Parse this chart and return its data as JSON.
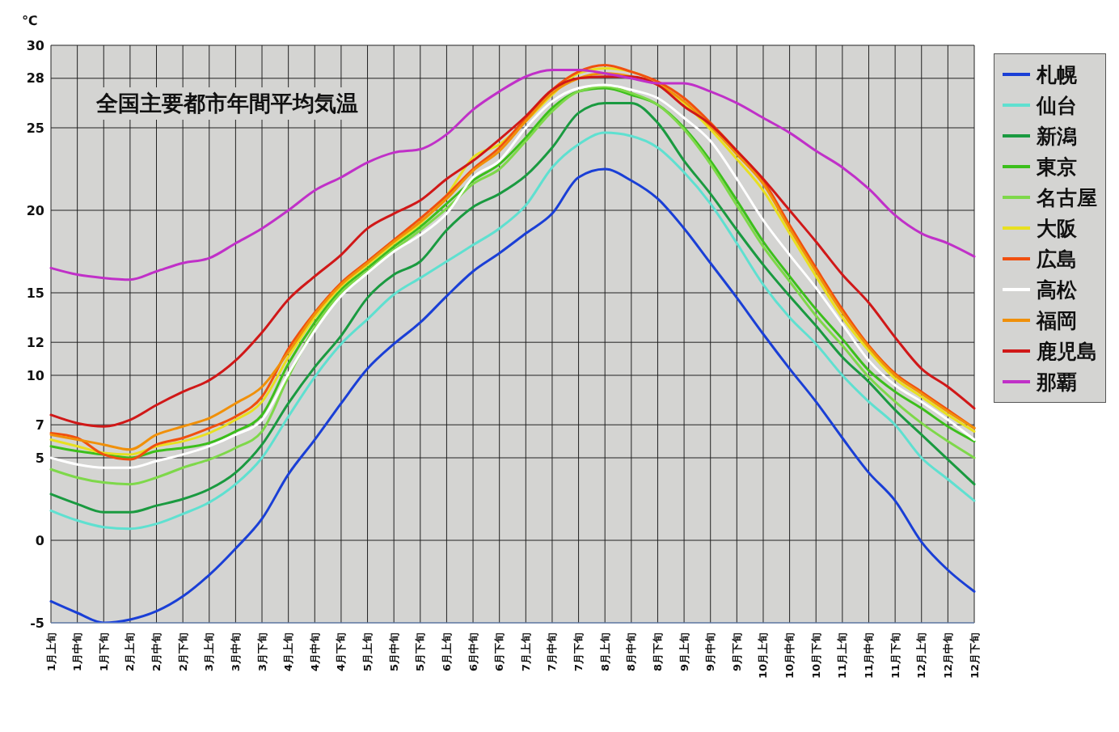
{
  "chart_data": {
    "type": "line",
    "title": "全国主要都市年間平均気温",
    "ylabel": "℃",
    "categories": [
      "1月上旬",
      "1月中旬",
      "1月下旬",
      "2月上旬",
      "2月中旬",
      "2月下旬",
      "3月上旬",
      "3月中旬",
      "3月下旬",
      "4月上旬",
      "4月中旬",
      "4月下旬",
      "5月上旬",
      "5月中旬",
      "5月下旬",
      "6月上旬",
      "6月中旬",
      "6月下旬",
      "7月上旬",
      "7月中旬",
      "7月下旬",
      "8月上旬",
      "8月中旬",
      "8月下旬",
      "9月上旬",
      "9月中旬",
      "9月下旬",
      "10月上旬",
      "10月中旬",
      "10月下旬",
      "11月上旬",
      "11月中旬",
      "11月下旬",
      "12月上旬",
      "12月中旬",
      "12月下旬"
    ],
    "series": [
      {
        "name": "札幌",
        "color": "#1a3fd6",
        "values": [
          -3.7,
          -4.4,
          -5.0,
          -4.8,
          -4.3,
          -3.4,
          -2.1,
          -0.5,
          1.3,
          4.0,
          6.1,
          8.3,
          10.4,
          11.9,
          13.2,
          14.8,
          16.3,
          17.4,
          18.6,
          19.8,
          22.0,
          22.5,
          21.8,
          20.7,
          18.9,
          16.8,
          14.7,
          12.5,
          10.4,
          8.4,
          6.2,
          4.1,
          2.4,
          -0.1,
          -1.8,
          -3.1
        ]
      },
      {
        "name": "仙台",
        "color": "#5fe0d0",
        "values": [
          1.8,
          1.2,
          0.8,
          0.7,
          1.0,
          1.6,
          2.3,
          3.4,
          5.0,
          7.5,
          9.9,
          11.9,
          13.4,
          14.9,
          15.9,
          16.9,
          17.9,
          18.9,
          20.3,
          22.6,
          24.0,
          24.7,
          24.5,
          23.8,
          22.3,
          20.4,
          18.0,
          15.5,
          13.5,
          11.9,
          10.0,
          8.4,
          7.0,
          5.0,
          3.7,
          2.4
        ]
      },
      {
        "name": "新潟",
        "color": "#1a9a40",
        "values": [
          2.8,
          2.2,
          1.7,
          1.7,
          2.1,
          2.5,
          3.1,
          4.1,
          5.8,
          8.3,
          10.5,
          12.4,
          14.7,
          16.1,
          16.9,
          18.8,
          20.2,
          21.0,
          22.1,
          23.8,
          25.9,
          26.5,
          26.5,
          25.3,
          23.0,
          21.0,
          18.8,
          16.7,
          14.8,
          13.0,
          11.1,
          9.6,
          7.9,
          6.4,
          4.9,
          3.4
        ]
      },
      {
        "name": "東京",
        "color": "#3cbf1c",
        "values": [
          5.7,
          5.4,
          5.2,
          5.0,
          5.4,
          5.6,
          5.9,
          6.6,
          7.6,
          10.7,
          13.2,
          15.2,
          16.5,
          17.8,
          19.0,
          20.4,
          21.8,
          22.8,
          24.4,
          26.2,
          27.2,
          27.4,
          27.0,
          26.4,
          25.0,
          23.0,
          20.6,
          18.1,
          16.0,
          14.0,
          12.2,
          10.3,
          9.0,
          8.0,
          6.9,
          6.0
        ]
      },
      {
        "name": "名古屋",
        "color": "#7ed84a",
        "values": [
          4.3,
          3.8,
          3.5,
          3.4,
          3.8,
          4.4,
          4.9,
          5.6,
          6.6,
          9.9,
          12.9,
          15.0,
          16.3,
          17.6,
          18.8,
          20.1,
          21.6,
          22.5,
          24.2,
          26.0,
          27.2,
          27.5,
          27.1,
          26.4,
          24.9,
          22.8,
          20.3,
          17.8,
          15.7,
          13.6,
          11.8,
          9.9,
          8.4,
          7.1,
          6.0,
          5.0
        ]
      },
      {
        "name": "大阪",
        "color": "#e8e020",
        "values": [
          6.1,
          5.7,
          5.3,
          5.2,
          5.7,
          6.0,
          6.5,
          7.3,
          8.4,
          11.1,
          13.5,
          15.4,
          16.7,
          18.0,
          19.2,
          20.9,
          23.2,
          24.0,
          25.4,
          27.0,
          28.3,
          28.6,
          28.4,
          27.7,
          26.5,
          24.9,
          23.1,
          21.2,
          18.6,
          16.0,
          13.5,
          11.5,
          9.8,
          8.7,
          7.6,
          6.6
        ]
      },
      {
        "name": "広島",
        "color": "#f05010",
        "values": [
          6.5,
          6.2,
          5.2,
          4.9,
          5.8,
          6.2,
          6.8,
          7.5,
          8.7,
          11.6,
          13.8,
          15.6,
          16.9,
          18.2,
          19.5,
          20.9,
          22.5,
          23.8,
          25.6,
          27.3,
          28.4,
          28.8,
          28.4,
          27.8,
          26.8,
          25.3,
          23.6,
          21.8,
          19.1,
          16.5,
          14.0,
          11.8,
          10.1,
          9.0,
          7.9,
          6.8
        ]
      },
      {
        "name": "高松",
        "color": "#ffffff",
        "values": [
          5.0,
          4.6,
          4.4,
          4.4,
          4.8,
          5.2,
          5.7,
          6.4,
          7.3,
          10.1,
          12.7,
          14.8,
          16.2,
          17.5,
          18.5,
          19.8,
          22.0,
          23.0,
          25.0,
          26.6,
          27.4,
          27.6,
          27.3,
          26.8,
          25.6,
          24.2,
          21.9,
          19.4,
          17.3,
          15.3,
          13.1,
          10.9,
          9.4,
          8.4,
          7.3,
          6.1
        ]
      },
      {
        "name": "福岡",
        "color": "#f0900a",
        "values": [
          6.4,
          6.1,
          5.8,
          5.5,
          6.4,
          6.9,
          7.4,
          8.3,
          9.3,
          11.4,
          13.7,
          15.5,
          16.8,
          18.1,
          19.3,
          20.7,
          22.4,
          23.6,
          25.4,
          27.1,
          28.0,
          28.3,
          28.1,
          27.6,
          26.6,
          25.1,
          23.4,
          21.6,
          18.9,
          16.3,
          13.8,
          11.7,
          10.0,
          8.9,
          7.8,
          6.8
        ]
      },
      {
        "name": "鹿児島",
        "color": "#d01818",
        "values": [
          7.6,
          7.1,
          6.9,
          7.3,
          8.2,
          9.0,
          9.7,
          10.9,
          12.6,
          14.6,
          16.0,
          17.3,
          18.9,
          19.8,
          20.6,
          21.9,
          23.0,
          24.3,
          25.7,
          27.3,
          28.0,
          28.1,
          28.1,
          27.6,
          26.3,
          25.2,
          23.6,
          21.9,
          20.0,
          18.1,
          16.1,
          14.4,
          12.3,
          10.4,
          9.3,
          8.0
        ]
      },
      {
        "name": "那覇",
        "color": "#c030c8",
        "values": [
          16.5,
          16.1,
          15.9,
          15.8,
          16.3,
          16.8,
          17.1,
          18.0,
          18.9,
          20.0,
          21.2,
          22.0,
          22.9,
          23.5,
          23.7,
          24.6,
          26.1,
          27.2,
          28.1,
          28.5,
          28.5,
          28.3,
          28.0,
          27.7,
          27.7,
          27.2,
          26.5,
          25.6,
          24.7,
          23.6,
          22.6,
          21.3,
          19.7,
          18.6,
          18.0,
          17.2
        ]
      }
    ],
    "ylim": [
      -5,
      30
    ],
    "yticks": [
      -5,
      0,
      5,
      7,
      10,
      12,
      15,
      20,
      25,
      28,
      30
    ],
    "grid": true,
    "legend": "right",
    "line_style": "solid"
  }
}
